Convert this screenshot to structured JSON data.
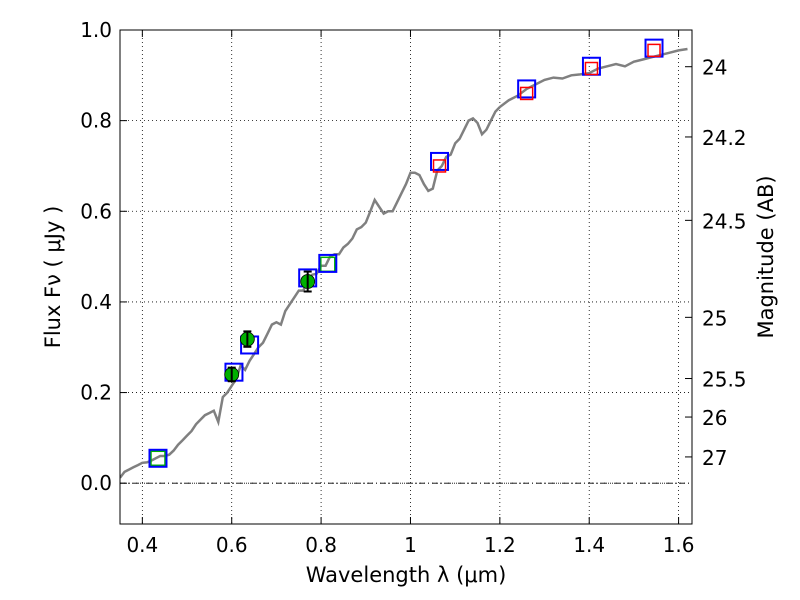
{
  "chart_data": {
    "type": "line",
    "xlabel": "Wavelength  λ (μm)",
    "ylabel": "Flux  Fν  ( μJy )",
    "right_ylabel": "Magnitude (AB)",
    "xlim": [
      0.35,
      1.63
    ],
    "ylim": [
      -0.09,
      1.0
    ],
    "grid": true,
    "x_ticks": [
      0.4,
      0.6,
      0.8,
      1.0,
      1.2,
      1.4,
      1.6
    ],
    "x_tick_labels": [
      "0.4",
      "0.6",
      "0.8",
      "1",
      "1.2",
      "1.4",
      "1.6"
    ],
    "y_ticks": [
      0.0,
      0.2,
      0.4,
      0.6,
      0.8,
      1.0
    ],
    "y_tick_labels": [
      "0.0",
      "0.2",
      "0.4",
      "0.6",
      "0.8",
      "1.0"
    ],
    "right_ticks": [
      {
        "label": "24",
        "flux": 0.919
      },
      {
        "label": "24.2",
        "flux": 0.764
      },
      {
        "label": "24.5",
        "flux": 0.58
      },
      {
        "label": "25",
        "flux": 0.366
      },
      {
        "label": "25.5",
        "flux": 0.231
      },
      {
        "label": "26",
        "flux": 0.146
      },
      {
        "label": "27",
        "flux": 0.058
      }
    ],
    "series": [
      {
        "name": "SED model",
        "color": "#808080",
        "x": [
          0.35,
          0.36,
          0.37,
          0.38,
          0.39,
          0.4,
          0.41,
          0.42,
          0.43,
          0.44,
          0.45,
          0.46,
          0.47,
          0.48,
          0.49,
          0.5,
          0.51,
          0.52,
          0.53,
          0.54,
          0.55,
          0.56,
          0.57,
          0.58,
          0.59,
          0.6,
          0.61,
          0.62,
          0.63,
          0.64,
          0.65,
          0.66,
          0.67,
          0.68,
          0.69,
          0.7,
          0.71,
          0.72,
          0.73,
          0.74,
          0.75,
          0.76,
          0.77,
          0.78,
          0.79,
          0.8,
          0.81,
          0.82,
          0.83,
          0.84,
          0.85,
          0.86,
          0.87,
          0.88,
          0.89,
          0.9,
          0.91,
          0.92,
          0.93,
          0.94,
          0.95,
          0.96,
          0.97,
          0.98,
          0.99,
          1.0,
          1.01,
          1.02,
          1.03,
          1.04,
          1.05,
          1.06,
          1.07,
          1.08,
          1.09,
          1.1,
          1.11,
          1.12,
          1.13,
          1.14,
          1.15,
          1.16,
          1.17,
          1.18,
          1.19,
          1.2,
          1.22,
          1.24,
          1.26,
          1.28,
          1.3,
          1.32,
          1.34,
          1.36,
          1.38,
          1.4,
          1.42,
          1.44,
          1.46,
          1.48,
          1.5,
          1.52,
          1.54,
          1.56,
          1.58,
          1.6,
          1.62
        ],
        "y": [
          0.012,
          0.025,
          0.03,
          0.035,
          0.04,
          0.045,
          0.046,
          0.05,
          0.055,
          0.06,
          0.06,
          0.063,
          0.072,
          0.085,
          0.095,
          0.105,
          0.115,
          0.13,
          0.14,
          0.15,
          0.155,
          0.16,
          0.135,
          0.19,
          0.2,
          0.215,
          0.23,
          0.26,
          0.25,
          0.27,
          0.285,
          0.3,
          0.31,
          0.33,
          0.35,
          0.355,
          0.35,
          0.38,
          0.395,
          0.41,
          0.425,
          0.425,
          0.445,
          0.46,
          0.462,
          0.48,
          0.48,
          0.5,
          0.505,
          0.505,
          0.52,
          0.528,
          0.54,
          0.56,
          0.565,
          0.575,
          0.6,
          0.625,
          0.61,
          0.595,
          0.6,
          0.6,
          0.62,
          0.64,
          0.66,
          0.685,
          0.685,
          0.68,
          0.66,
          0.645,
          0.65,
          0.69,
          0.7,
          0.72,
          0.725,
          0.75,
          0.76,
          0.78,
          0.8,
          0.805,
          0.795,
          0.77,
          0.78,
          0.8,
          0.82,
          0.83,
          0.845,
          0.855,
          0.87,
          0.88,
          0.89,
          0.895,
          0.893,
          0.9,
          0.902,
          0.905,
          0.915,
          0.92,
          0.925,
          0.92,
          0.93,
          0.935,
          0.94,
          0.945,
          0.95,
          0.955,
          0.958
        ]
      },
      {
        "name": "model photometry (blue squares)",
        "color": "#0000ff",
        "x": [
          0.435,
          0.605,
          0.64,
          0.77,
          0.815,
          1.065,
          1.26,
          1.405,
          1.545
        ],
        "y": [
          0.055,
          0.245,
          0.305,
          0.453,
          0.485,
          0.71,
          0.87,
          0.92,
          0.96
        ]
      },
      {
        "name": "observed photometry (green)",
        "color": "#00b000",
        "x": [
          0.6,
          0.635,
          0.77
        ],
        "y": [
          0.24,
          0.318,
          0.445
        ],
        "err": [
          0.015,
          0.017,
          0.022
        ]
      },
      {
        "name": "observed photometry (red squares)",
        "color": "#ff0000",
        "x": [
          1.065,
          1.26,
          1.405,
          1.545
        ],
        "y": [
          0.7,
          0.86,
          0.915,
          0.955
        ]
      },
      {
        "name": "model photometry (green squares)",
        "color": "#00b000",
        "x": [
          0.435,
          0.815
        ],
        "y": [
          0.055,
          0.483
        ]
      }
    ]
  }
}
